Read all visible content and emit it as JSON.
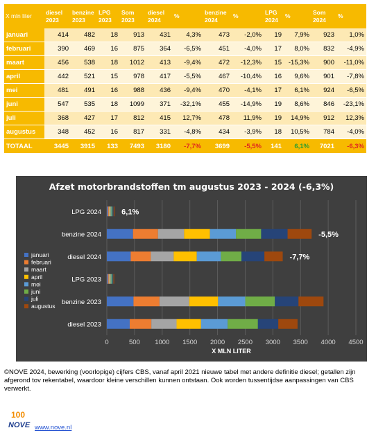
{
  "table": {
    "headers": [
      "X mln liter",
      "diesel\n2023",
      "benzine\n2023",
      "LPG\n2023",
      "Som\n2023",
      "diesel\n2024",
      "%",
      "benzine\n2024",
      "%",
      "LPG\n2024",
      "%",
      "Som\n2024",
      "%"
    ],
    "rows": [
      [
        "januari",
        "414",
        "482",
        "18",
        "913",
        "431",
        "4,3%",
        "473",
        "-2,0%",
        "19",
        "7,9%",
        "923",
        "1,0%"
      ],
      [
        "februari",
        "390",
        "469",
        "16",
        "875",
        "364",
        "-6,5%",
        "451",
        "-4,0%",
        "17",
        "8,0%",
        "832",
        "-4,9%"
      ],
      [
        "maart",
        "456",
        "538",
        "18",
        "1012",
        "413",
        "-9,4%",
        "472",
        "-12,3%",
        "15",
        "-15,3%",
        "900",
        "-11,0%"
      ],
      [
        "april",
        "442",
        "521",
        "15",
        "978",
        "417",
        "-5,5%",
        "467",
        "-10,4%",
        "16",
        "9,6%",
        "901",
        "-7,8%"
      ],
      [
        "mei",
        "481",
        "491",
        "16",
        "988",
        "436",
        "-9,4%",
        "470",
        "-4,1%",
        "17",
        "6,1%",
        "924",
        "-6,5%"
      ],
      [
        "juni",
        "547",
        "535",
        "18",
        "1099",
        "371",
        "-32,1%",
        "455",
        "-14,9%",
        "19",
        "8,6%",
        "846",
        "-23,1%"
      ],
      [
        "juli",
        "368",
        "427",
        "17",
        "812",
        "415",
        "12,7%",
        "478",
        "11,9%",
        "19",
        "14,9%",
        "912",
        "12,3%"
      ],
      [
        "augustus",
        "348",
        "452",
        "16",
        "817",
        "331",
        "-4,8%",
        "434",
        "-3,9%",
        "18",
        "10,5%",
        "784",
        "-4,0%"
      ]
    ],
    "total": [
      "TOTAAL",
      "3445",
      "3915",
      "133",
      "7493",
      "3180",
      "-7,7%",
      "3699",
      "-5,5%",
      "141",
      "6,1%",
      "7021",
      "-6,3%"
    ]
  },
  "chart_data": {
    "type": "bar",
    "orientation": "horizontal",
    "stacked": true,
    "title": "Afzet motorbrandstoffen tm augustus 2023 - 2024 (-6,3%)",
    "xlabel": "X MLN LITER",
    "xlim": [
      0,
      4500
    ],
    "xticks": [
      0,
      500,
      1000,
      1500,
      2000,
      2500,
      3000,
      3500,
      4000,
      4500
    ],
    "grid": true,
    "legend": "left",
    "categories": [
      "LPG 2024",
      "benzine 2024",
      "diesel 2024",
      "LPG 2023",
      "benzine 2023",
      "diesel 2023"
    ],
    "series": [
      {
        "name": "januari",
        "color": "#4472c4",
        "values": [
          19,
          473,
          431,
          18,
          482,
          414
        ]
      },
      {
        "name": "februari",
        "color": "#ed7d31",
        "values": [
          17,
          451,
          364,
          16,
          469,
          390
        ]
      },
      {
        "name": "maart",
        "color": "#a5a5a5",
        "values": [
          15,
          472,
          413,
          18,
          538,
          456
        ]
      },
      {
        "name": "april",
        "color": "#ffc000",
        "values": [
          16,
          467,
          417,
          15,
          521,
          442
        ]
      },
      {
        "name": "mei",
        "color": "#5b9bd5",
        "values": [
          17,
          470,
          436,
          16,
          491,
          481
        ]
      },
      {
        "name": "juni",
        "color": "#70ad47",
        "values": [
          19,
          455,
          371,
          18,
          535,
          547
        ]
      },
      {
        "name": "juli",
        "color": "#264478",
        "values": [
          19,
          478,
          415,
          17,
          427,
          368
        ]
      },
      {
        "name": "augustus",
        "color": "#9e480e",
        "values": [
          18,
          434,
          331,
          16,
          452,
          348
        ]
      }
    ],
    "annotations": [
      {
        "category": "LPG 2024",
        "text": "6,1%"
      },
      {
        "category": "benzine 2024",
        "text": "-5,5%"
      },
      {
        "category": "diesel 2024",
        "text": "-7,7%"
      }
    ]
  },
  "footer": {
    "note": "©NOVE 2024, bewerking (voorlopige) cijfers CBS, vanaf april 2021 nieuwe tabel met andere definitie diesel; getallen zijn afgerond tov rekentabel, waardoor kleine verschillen kunnen ontstaan. Ook worden tussentijdse aanpassingen van CBS verwerkt.",
    "logo_text": "NOVE",
    "logo_number": "100",
    "website": "www.nove.nl"
  },
  "colors": {
    "header": "#f7ba00",
    "row_odd": "#fde9b4",
    "row_even": "#fef4d9",
    "chart_bg": "#3f3f3f",
    "negative": "#e0261f",
    "positive": "#2e9e2e",
    "link": "#1f4fd1"
  }
}
